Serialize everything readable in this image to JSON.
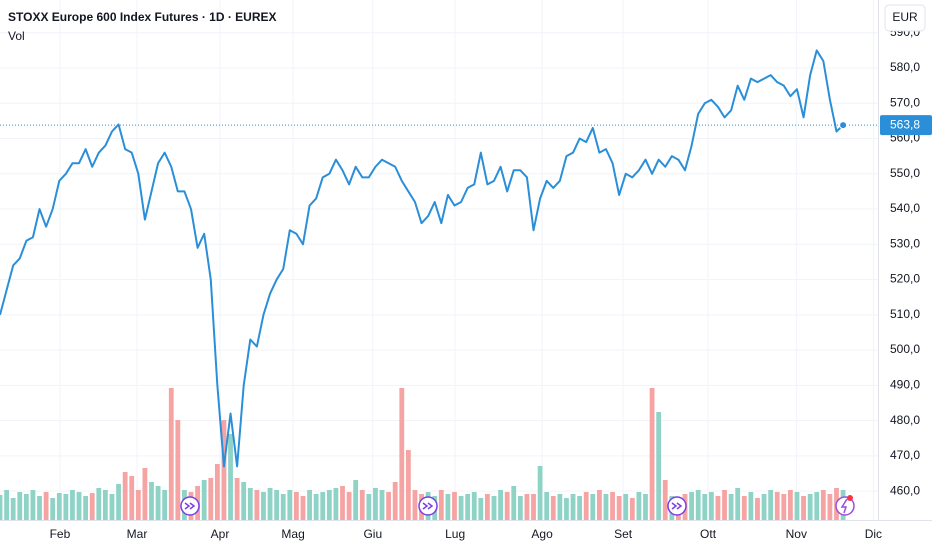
{
  "chart_data": {
    "type": "line",
    "title": "STOXX Europe 600 Index Futures · 1D · EUREX",
    "volume_label": "Vol",
    "currency": "EUR",
    "color": "#2a8fd8",
    "up_color": "#8fd3c7",
    "down_color": "#f5a3a3",
    "values": [
      510,
      517,
      524,
      526,
      531,
      532,
      540,
      535,
      540,
      548,
      550,
      553,
      553,
      557,
      552,
      556,
      558,
      562,
      564,
      557,
      556,
      550,
      537,
      545,
      553,
      556,
      552,
      545,
      545,
      540,
      529,
      533,
      520,
      490,
      467,
      482,
      467,
      490,
      503,
      501,
      510,
      516,
      520,
      523,
      534,
      533,
      530,
      541,
      543,
      549,
      550,
      554,
      551,
      547,
      552,
      549,
      549,
      552,
      554,
      553,
      552,
      548,
      545,
      542,
      536,
      538,
      542,
      536,
      544,
      541,
      542,
      546,
      547,
      556,
      547,
      548,
      552,
      545,
      551,
      551,
      549,
      534,
      543,
      548,
      546,
      548,
      555,
      556,
      560,
      559,
      563,
      556,
      557,
      553,
      544,
      550,
      549,
      551,
      554,
      550,
      554,
      552,
      555,
      554,
      551,
      558,
      567,
      570,
      571,
      569,
      566,
      568,
      575,
      571,
      577,
      576,
      577,
      578,
      576,
      575,
      572,
      574,
      566,
      578,
      585,
      582,
      571,
      562,
      563.8
    ],
    "volume": [
      25,
      30,
      22,
      28,
      26,
      30,
      24,
      28,
      22,
      27,
      26,
      30,
      28,
      24,
      27,
      32,
      30,
      26,
      36,
      48,
      44,
      30,
      52,
      38,
      34,
      30,
      132,
      100,
      30,
      28,
      34,
      40,
      42,
      56,
      100,
      86,
      42,
      38,
      32,
      30,
      28,
      32,
      30,
      26,
      30,
      28,
      24,
      30,
      26,
      28,
      30,
      32,
      34,
      28,
      40,
      30,
      26,
      32,
      30,
      28,
      38,
      132,
      70,
      30,
      26,
      28,
      24,
      30,
      26,
      28,
      24,
      26,
      28,
      22,
      26,
      24,
      30,
      28,
      34,
      24,
      26,
      26,
      54,
      28,
      24,
      26,
      22,
      26,
      24,
      28,
      26,
      30,
      26,
      28,
      24,
      26,
      22,
      28,
      26,
      132,
      108,
      40,
      24,
      22,
      26,
      28,
      30,
      26,
      28,
      24,
      30,
      26,
      32,
      24,
      28,
      22,
      26,
      30,
      28,
      26,
      30,
      28,
      24,
      26,
      28,
      30,
      26,
      32,
      30
    ],
    "current_price": {
      "value": 563.8,
      "label": "563,8"
    },
    "xlim": [
      0,
      133.3
    ],
    "xticks": [
      {
        "value": 9.1,
        "label": "Feb"
      },
      {
        "value": 20.8,
        "label": "Mar"
      },
      {
        "value": 33.4,
        "label": "Apr"
      },
      {
        "value": 44.5,
        "label": "Mag"
      },
      {
        "value": 56.6,
        "label": "Giu"
      },
      {
        "value": 69.1,
        "label": "Lug"
      },
      {
        "value": 82.3,
        "label": "Ago"
      },
      {
        "value": 94.6,
        "label": "Set"
      },
      {
        "value": 107.5,
        "label": "Ott"
      },
      {
        "value": 120.9,
        "label": "Nov"
      },
      {
        "value": 132.6,
        "label": "Dic"
      }
    ],
    "ylim": [
      451.8,
      599.3
    ],
    "yticks": [
      {
        "value": 460,
        "label": "460,0"
      },
      {
        "value": 470,
        "label": "470,0"
      },
      {
        "value": 480,
        "label": "480,0"
      },
      {
        "value": 490,
        "label": "490,0"
      },
      {
        "value": 500,
        "label": "500,0"
      },
      {
        "value": 510,
        "label": "510,0"
      },
      {
        "value": 520,
        "label": "520,0"
      },
      {
        "value": 530,
        "label": "530,0"
      },
      {
        "value": 540,
        "label": "540,0"
      },
      {
        "value": 550,
        "label": "550,0"
      },
      {
        "value": 560,
        "label": "560,0"
      },
      {
        "value": 570,
        "label": "570,0"
      },
      {
        "value": 580,
        "label": "580,0"
      },
      {
        "value": 590,
        "label": "590,0"
      }
    ],
    "grid": true
  }
}
